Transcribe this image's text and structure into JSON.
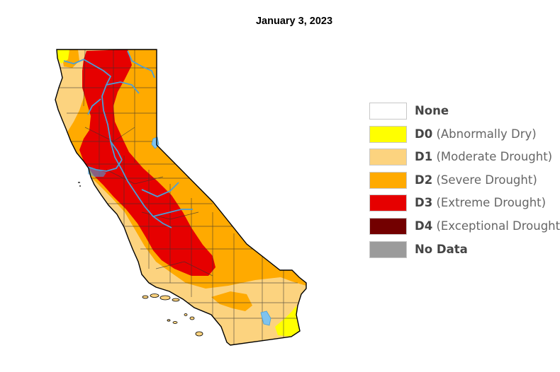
{
  "title": "January 3, 2023",
  "legend": [
    {
      "code": "None",
      "desc": "",
      "color": "#ffffff"
    },
    {
      "code": "D0",
      "desc": "(Abnormally Dry)",
      "color": "#ffff00"
    },
    {
      "code": "D1",
      "desc": "(Moderate Drought)",
      "color": "#fcd37f"
    },
    {
      "code": "D2",
      "desc": "(Severe Drought)",
      "color": "#ffaa00"
    },
    {
      "code": "D3",
      "desc": "(Extreme Drought)",
      "color": "#e60000"
    },
    {
      "code": "D4",
      "desc": "(Exceptional Drought)",
      "color": "#730000"
    },
    {
      "code": "No Data",
      "desc": "",
      "color": "#9b9b9b"
    }
  ],
  "colors": {
    "river": "#4a9fd8",
    "county_border": "#333333",
    "state_border": "#000000"
  }
}
